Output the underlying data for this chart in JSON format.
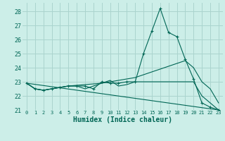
{
  "xlabel": "Humidex (Indice chaleur)",
  "background_color": "#cceee8",
  "grid_color": "#aad4ce",
  "line_color": "#006655",
  "xlim": [
    -0.5,
    23.5
  ],
  "ylim": [
    21.0,
    28.6
  ],
  "xticks": [
    0,
    1,
    2,
    3,
    4,
    5,
    6,
    7,
    8,
    9,
    10,
    11,
    12,
    13,
    14,
    15,
    16,
    17,
    18,
    19,
    20,
    21,
    22,
    23
  ],
  "yticks": [
    21,
    22,
    23,
    24,
    25,
    26,
    27,
    28
  ],
  "series_marked": {
    "x": [
      0,
      1,
      2,
      3,
      4,
      5,
      6,
      7,
      8,
      9,
      10,
      11,
      12,
      13,
      14,
      15,
      16,
      17,
      18,
      19,
      20,
      21,
      22,
      23
    ],
    "y": [
      22.9,
      22.5,
      22.4,
      22.5,
      22.6,
      22.7,
      22.7,
      22.7,
      22.5,
      23.0,
      22.9,
      22.9,
      23.0,
      23.0,
      25.0,
      26.6,
      28.2,
      26.5,
      26.2,
      24.6,
      23.2,
      21.5,
      21.2,
      21.0
    ]
  },
  "series_rising": {
    "x": [
      0,
      1,
      2,
      3,
      4,
      5,
      6,
      7,
      8,
      9,
      10,
      11,
      12,
      13,
      14,
      15,
      16,
      17,
      18,
      19,
      20,
      21,
      22,
      23
    ],
    "y": [
      22.9,
      22.5,
      22.4,
      22.5,
      22.6,
      22.7,
      22.75,
      22.8,
      22.85,
      22.9,
      23.0,
      23.1,
      23.2,
      23.3,
      23.5,
      23.7,
      23.9,
      24.1,
      24.3,
      24.5,
      24.0,
      23.0,
      22.5,
      21.5
    ]
  },
  "series_flat": {
    "x": [
      0,
      1,
      2,
      3,
      4,
      5,
      6,
      7,
      8,
      9,
      10,
      11,
      12,
      13,
      14,
      15,
      16,
      17,
      18,
      19,
      20,
      21,
      22,
      23
    ],
    "y": [
      22.9,
      22.5,
      22.4,
      22.5,
      22.6,
      22.7,
      22.7,
      22.5,
      22.7,
      22.9,
      23.1,
      22.7,
      22.8,
      23.0,
      23.0,
      23.0,
      23.0,
      23.0,
      23.0,
      23.0,
      23.0,
      22.0,
      21.5,
      21.0
    ]
  },
  "series_decline": {
    "x": [
      0,
      23
    ],
    "y": [
      22.9,
      21.0
    ]
  }
}
